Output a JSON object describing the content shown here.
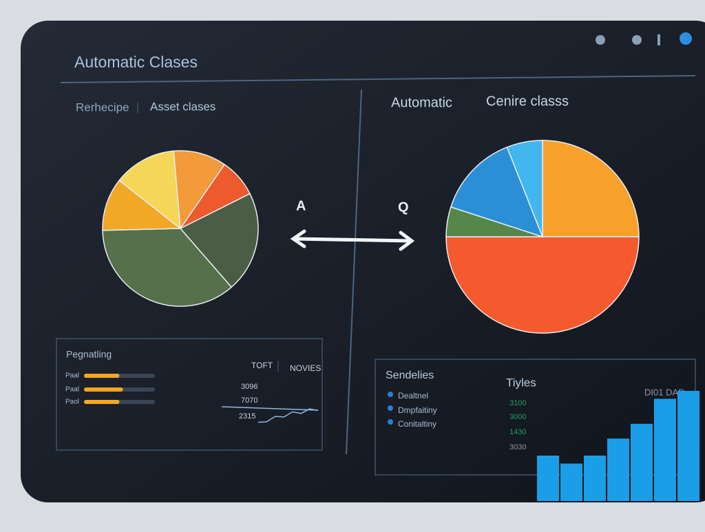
{
  "header": {
    "title": "Automatic Clases"
  },
  "left": {
    "tabs": [
      "Rerhecipe",
      "Asset clases"
    ],
    "marker": "A"
  },
  "right": {
    "tabs": [
      "Automatic",
      "Cenire classs"
    ],
    "marker": "Q"
  },
  "left_panel": {
    "title": "Pegnatling",
    "headers": [
      "TOFT",
      "NOVIES"
    ],
    "numbers": [
      "3096",
      "7070",
      "2315"
    ]
  },
  "right_panel": {
    "title": "Sendelies",
    "legend": [
      "Dealtnel",
      "Dmpfaitiny",
      "Conitaltiny"
    ],
    "column_title": "Tiyles",
    "numbers": [
      "3100",
      "3000",
      "1430",
      "3030"
    ],
    "corner": "DI01 DAD"
  },
  "chart_data": [
    {
      "type": "pie",
      "values": [
        11,
        8,
        21,
        36,
        11,
        13
      ],
      "colors": [
        "#f39a3a",
        "#ec5a2e",
        "#4b5e45",
        "#55704a",
        "#f3a726",
        "#f6d657"
      ]
    },
    {
      "type": "pie",
      "values": [
        25,
        50,
        5,
        14,
        6
      ],
      "colors": [
        "#f7a02a",
        "#f45a2e",
        "#55874a",
        "#2b8fd8",
        "#42b6ee"
      ]
    },
    {
      "type": "hbar",
      "categories": [
        "Paal",
        "Paal",
        "Paol"
      ],
      "values": [
        50,
        55,
        50
      ],
      "xlim": [
        0,
        100
      ],
      "color": "#f5a623"
    },
    {
      "type": "line",
      "categories": [
        null,
        null,
        null,
        null,
        null,
        null,
        null,
        null
      ],
      "values": [
        10,
        12,
        30,
        28,
        45,
        40,
        55,
        50
      ],
      "ylim": [
        0,
        60
      ],
      "color": "#8fb8e0"
    },
    {
      "type": "bar",
      "categories": [
        null,
        null,
        null,
        null,
        null,
        null,
        null
      ],
      "values": [
        40,
        33,
        40,
        55,
        68,
        90,
        97
      ],
      "ylim": [
        0,
        100
      ],
      "color": "#1a9ee8"
    }
  ]
}
